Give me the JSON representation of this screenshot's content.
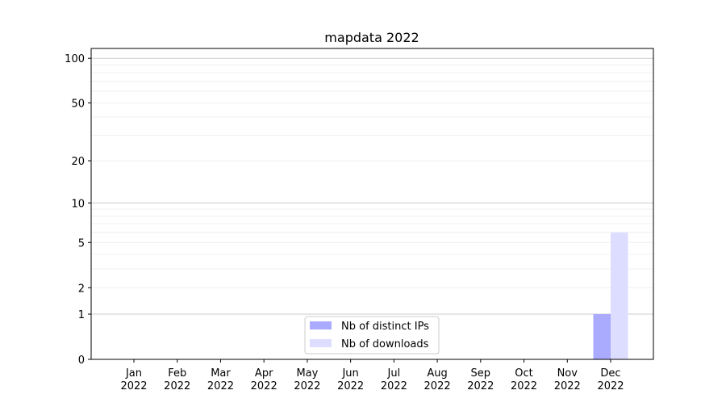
{
  "chart_data": {
    "type": "bar",
    "title": "mapdata 2022",
    "xlabel": "",
    "ylabel": "",
    "yscale": "log(1+y)",
    "ylim": [
      0,
      110
    ],
    "yticks": [
      0,
      1,
      2,
      5,
      10,
      20,
      50,
      100
    ],
    "ytick_labels": [
      "0",
      "1",
      "2",
      "5",
      "10",
      "20",
      "50",
      "100"
    ],
    "categories": [
      "Jan\n2022",
      "Feb\n2022",
      "Mar\n2022",
      "Apr\n2022",
      "May\n2022",
      "Jun\n2022",
      "Jul\n2022",
      "Aug\n2022",
      "Sep\n2022",
      "Oct\n2022",
      "Nov\n2022",
      "Dec\n2022"
    ],
    "series": [
      {
        "name": "Nb of distinct IPs",
        "color": "#aaaaff",
        "values": [
          0,
          0,
          0,
          0,
          0,
          0,
          0,
          0,
          0,
          0,
          0,
          1
        ]
      },
      {
        "name": "Nb of downloads",
        "color": "#ddddff",
        "values": [
          0,
          0,
          0,
          0,
          0,
          0,
          0,
          0,
          0,
          0,
          0,
          6
        ]
      }
    ],
    "grid": true,
    "legend": "lower center"
  }
}
